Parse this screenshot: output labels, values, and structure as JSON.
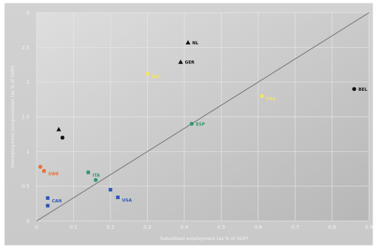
{
  "chart_data": {
    "type": "scatter",
    "title": "",
    "xlabel": "Subsidised employment (as % of GDP)",
    "ylabel": "Unemployment compensation (as % of GDP)",
    "xlim": [
      0,
      0.9
    ],
    "ylim": [
      0,
      3
    ],
    "grid": true,
    "x_ticks": [
      "0",
      "0.1",
      "0.2",
      "0.3",
      "0.4",
      "0.5",
      "0.6",
      "0.7",
      "0.8",
      "0.9"
    ],
    "y_ticks": [
      "0",
      "0.5",
      "1",
      "1.5",
      "2",
      "2.5",
      "3"
    ],
    "reference_line": {
      "from": [
        0,
        0
      ],
      "to": [
        0.9,
        3
      ]
    },
    "points": [
      {
        "x": 0.41,
        "y": 2.57,
        "marker": "triangle",
        "color": "#111111",
        "label": "NL"
      },
      {
        "x": 0.39,
        "y": 2.29,
        "marker": "triangle",
        "color": "#111111",
        "label": "GER"
      },
      {
        "x": 0.86,
        "y": 1.9,
        "marker": "circle",
        "color": "#111111",
        "label": "BEL"
      },
      {
        "x": 0.06,
        "y": 1.32,
        "marker": "triangle",
        "color": "#111111",
        "label": ""
      },
      {
        "x": 0.07,
        "y": 1.2,
        "marker": "circle",
        "color": "#111111",
        "label": ""
      },
      {
        "x": 0.3,
        "y": 2.12,
        "marker": "square",
        "color": "#f2e36a",
        "label": "NZL"
      },
      {
        "x": 0.61,
        "y": 1.8,
        "marker": "square",
        "color": "#f2e36a",
        "label": "FRA"
      },
      {
        "x": 0.42,
        "y": 1.4,
        "marker": "circle",
        "color": "#2e9a6c",
        "label": "ESP"
      },
      {
        "x": 0.16,
        "y": 0.59,
        "marker": "circle",
        "color": "#2e9a6c",
        "label": ""
      },
      {
        "x": 0.14,
        "y": 0.7,
        "marker": "square",
        "color": "#2e9a6c",
        "label": "ITA"
      },
      {
        "x": 0.01,
        "y": 0.78,
        "marker": "circle",
        "color": "#e7703a",
        "label": ""
      },
      {
        "x": 0.02,
        "y": 0.72,
        "marker": "square",
        "color": "#e7703a",
        "label": "SWE"
      },
      {
        "x": 0.2,
        "y": 0.45,
        "marker": "square",
        "color": "#2e56b8",
        "label": ""
      },
      {
        "x": 0.22,
        "y": 0.34,
        "marker": "square",
        "color": "#2e56b8",
        "label": "USA"
      },
      {
        "x": 0.03,
        "y": 0.33,
        "marker": "square",
        "color": "#2e56b8",
        "label": "CAN"
      },
      {
        "x": 0.03,
        "y": 0.22,
        "marker": "square",
        "color": "#2e56b8",
        "label": ""
      }
    ]
  },
  "colors": {
    "panel_bg": "#cccccc",
    "plot_bg_light": "#dcdcdc",
    "plot_bg_dark": "#b8b8b8",
    "grid": "#e8e8e8",
    "reference_line": "#7a7a7a",
    "axis_text": "#f4f4f4"
  }
}
